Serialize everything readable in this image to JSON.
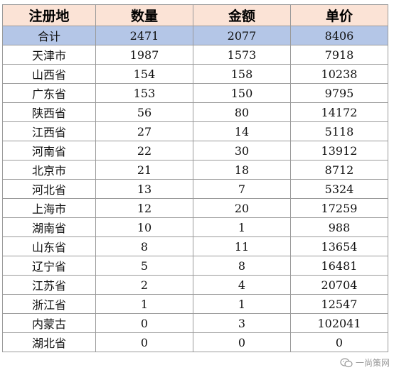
{
  "table": {
    "headers": [
      "注册地",
      "数量",
      "金额",
      "单价"
    ],
    "total": {
      "region": "合计",
      "count": "2471",
      "amount": "2077",
      "price": "8406"
    },
    "rows": [
      {
        "region": "天津市",
        "count": "1987",
        "amount": "1573",
        "price": "7918"
      },
      {
        "region": "山西省",
        "count": "154",
        "amount": "158",
        "price": "10238"
      },
      {
        "region": "广东省",
        "count": "153",
        "amount": "150",
        "price": "9795"
      },
      {
        "region": "陕西省",
        "count": "56",
        "amount": "80",
        "price": "14172"
      },
      {
        "region": "江西省",
        "count": "27",
        "amount": "14",
        "price": "5118"
      },
      {
        "region": "河南省",
        "count": "22",
        "amount": "30",
        "price": "13912"
      },
      {
        "region": "北京市",
        "count": "21",
        "amount": "18",
        "price": "8712"
      },
      {
        "region": "河北省",
        "count": "13",
        "amount": "7",
        "price": "5324"
      },
      {
        "region": "上海市",
        "count": "12",
        "amount": "20",
        "price": "17259"
      },
      {
        "region": "湖南省",
        "count": "10",
        "amount": "1",
        "price": "988"
      },
      {
        "region": "山东省",
        "count": "8",
        "amount": "11",
        "price": "13654"
      },
      {
        "region": "辽宁省",
        "count": "5",
        "amount": "8",
        "price": "16481"
      },
      {
        "region": "江苏省",
        "count": "2",
        "amount": "4",
        "price": "20704"
      },
      {
        "region": "浙江省",
        "count": "1",
        "amount": "1",
        "price": "12547"
      },
      {
        "region": "内蒙古",
        "count": "0",
        "amount": "3",
        "price": "102041"
      },
      {
        "region": "湖北省",
        "count": "0",
        "amount": "0",
        "price": "0"
      }
    ]
  },
  "watermark": {
    "text": "一尚策网",
    "icon": "wechat-icon"
  },
  "colors": {
    "header_bg": "#fbe3d6",
    "total_row_bg": "#b4c6e7",
    "border": "#9a9a9a"
  }
}
